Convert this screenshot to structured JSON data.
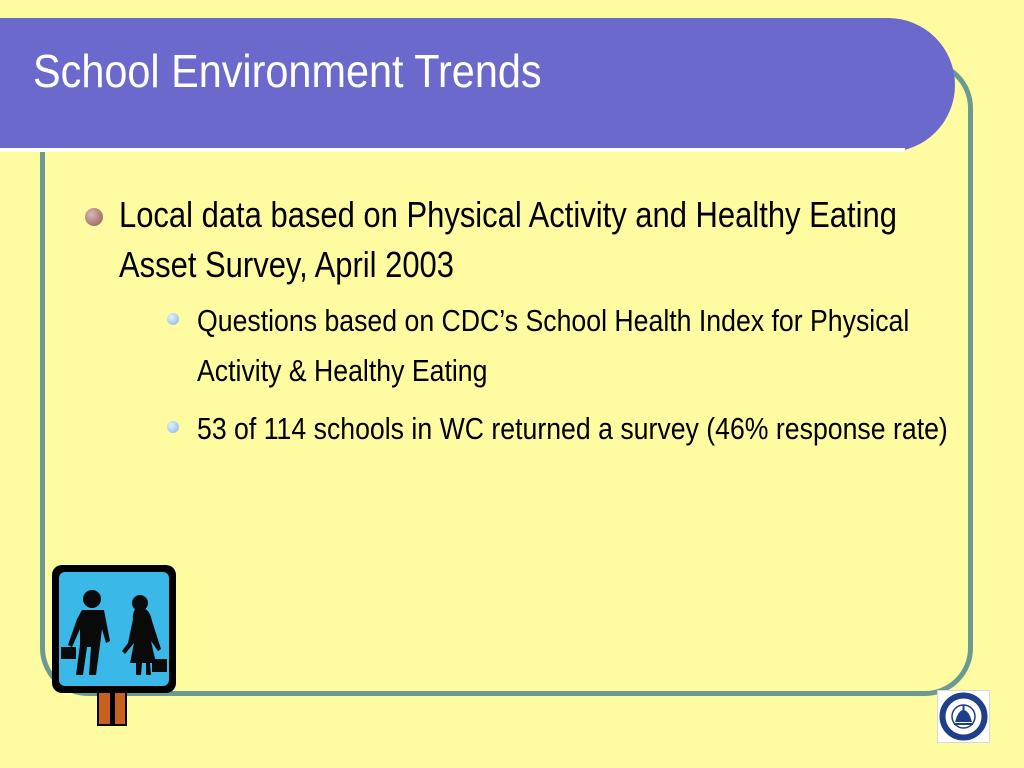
{
  "slide": {
    "title": "School Environment Trends",
    "bullets": [
      {
        "text": "Local data based on Physical Activity and Healthy Eating Asset Survey, April 2003",
        "sub_bullets": [
          {
            "text": "Questions based on CDC’s School Health Index for Physical Activity & Healthy Eating"
          },
          {
            "text": "53 of 114 schools in WC returned a survey (46% response rate)"
          }
        ]
      }
    ]
  },
  "images": {
    "clipart": "school-crossing-sign",
    "logo": "washtenaw-county-seal"
  },
  "colors": {
    "background": "#FFFBA0",
    "title_band": "#6B69CC",
    "frame_border": "#6B9A93",
    "sign_face": "#3AB9E8",
    "level1_bullet": "#A6746E",
    "level2_bullet": "#9DC6EC"
  }
}
